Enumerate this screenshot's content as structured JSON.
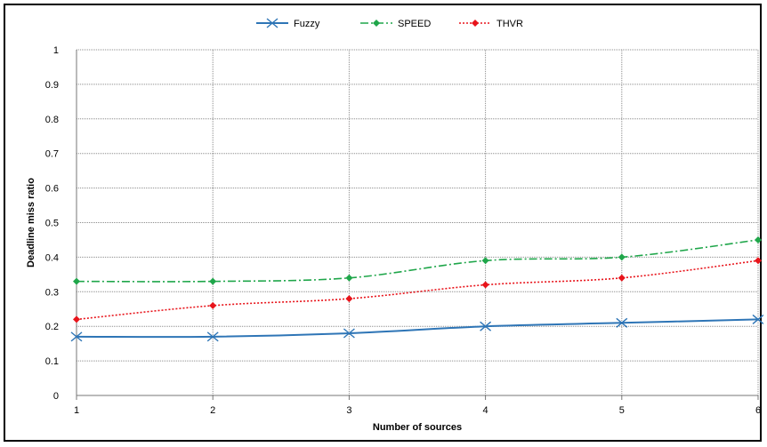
{
  "chart_data": {
    "type": "line",
    "xlabel": "Number  of sources",
    "ylabel": "Deadline miss ratio",
    "x": [
      1,
      2,
      3,
      4,
      5,
      6
    ],
    "x_tick_labels": [
      "1",
      "2",
      "3",
      "4",
      "5",
      "6"
    ],
    "ylim": [
      0,
      1
    ],
    "y_tick_labels": [
      "0",
      "0.1",
      "0.2",
      "0.3",
      "0.4",
      "0.5",
      "0.6",
      "0.7",
      "0.8",
      "0.9",
      "1"
    ],
    "grid": true,
    "legend_position": "top",
    "series": [
      {
        "name": "Fuzzy",
        "values": [
          0.17,
          0.17,
          0.18,
          0.2,
          0.21,
          0.22
        ],
        "color": "#2e75b6",
        "line_style": "solid",
        "marker": "x"
      },
      {
        "name": "SPEED",
        "values": [
          0.33,
          0.33,
          0.34,
          0.39,
          0.4,
          0.45
        ],
        "color": "#1fa64a",
        "line_style": "dash-dot",
        "marker": "diamond"
      },
      {
        "name": "THVR",
        "values": [
          0.22,
          0.26,
          0.28,
          0.32,
          0.34,
          0.39
        ],
        "color": "#e8141b",
        "line_style": "dotted",
        "marker": "diamond"
      }
    ]
  }
}
